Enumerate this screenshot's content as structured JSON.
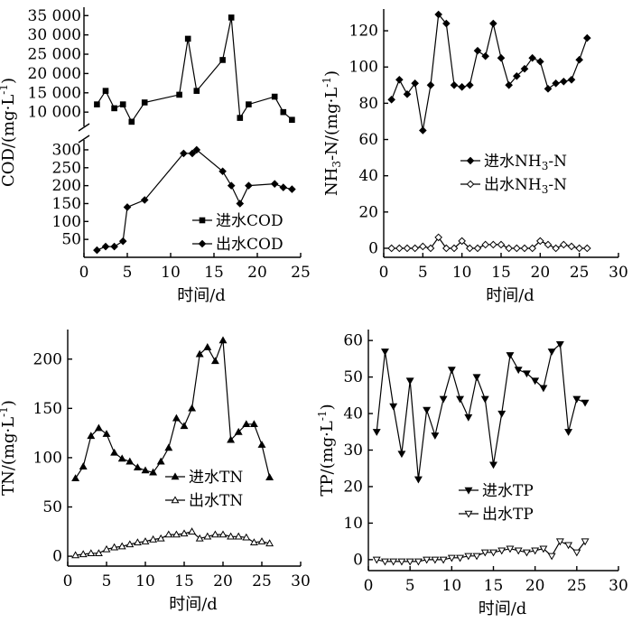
{
  "chart_data": [
    {
      "type": "line",
      "panel": "COD",
      "xlabel": "时间/d",
      "ylabel_main": "COD/(mg·L",
      "ylabel_sup": "-1",
      "ylabel_tail": ")",
      "xlim": [
        0,
        25
      ],
      "xticks": [
        "0",
        "5",
        "10",
        "15",
        "20",
        "25"
      ],
      "broken_y_axis": true,
      "upper_ylim": [
        7000,
        36000
      ],
      "upper_yticks": [
        [
          "10 000",
          10000
        ],
        [
          "15 000",
          15000
        ],
        [
          "20 000",
          20000
        ],
        [
          "25 000",
          25000
        ],
        [
          "30 000",
          30000
        ],
        [
          "35 000",
          35000
        ]
      ],
      "lower_ylim": [
        0,
        320
      ],
      "lower_yticks": [
        [
          "50",
          50
        ],
        [
          "100",
          100
        ],
        [
          "150",
          150
        ],
        [
          "200",
          200
        ],
        [
          "250",
          250
        ],
        [
          "300",
          300
        ]
      ],
      "legend_position": "lower-right",
      "series": [
        {
          "name": "进水COD",
          "marker": "square",
          "axis": "upper",
          "x": [
            1.5,
            2.5,
            3.5,
            4.5,
            5.5,
            7,
            11,
            12,
            13,
            16,
            17,
            18,
            19,
            22,
            23,
            24
          ],
          "y": [
            12000,
            15500,
            11000,
            12000,
            7500,
            12500,
            14500,
            29000,
            15500,
            23500,
            34500,
            8500,
            12000,
            14000,
            10000,
            8000
          ]
        },
        {
          "name": "出水COD",
          "marker": "diamond",
          "axis": "lower",
          "x": [
            1.5,
            2.5,
            3.5,
            4.5,
            5,
            7,
            11.5,
            12.5,
            13,
            16,
            17,
            18,
            19,
            22,
            23,
            24
          ],
          "y": [
            20,
            30,
            30,
            45,
            140,
            160,
            290,
            290,
            300,
            240,
            200,
            150,
            200,
            205,
            195,
            190
          ]
        }
      ]
    },
    {
      "type": "line",
      "panel": "NH3-N",
      "xlabel": "时间/d",
      "ylabel_main": "NH",
      "ylabel_sub": "3",
      "ylabel_mid": "-N/(mg·L",
      "ylabel_sup": "-1",
      "ylabel_tail": ")",
      "xlim": [
        0,
        30
      ],
      "xticks": [
        "0",
        "5",
        "10",
        "15",
        "20",
        "25",
        "30"
      ],
      "ylim": [
        -5,
        132
      ],
      "yticks": [
        "0",
        "20",
        "40",
        "60",
        "80",
        "100",
        "120"
      ],
      "legend_position": "middle-right",
      "series": [
        {
          "name": "进水NH3-N",
          "legend_main": "进水NH",
          "legend_sub": "3",
          "legend_tail": "-N",
          "marker": "filled-diamond",
          "x": [
            1,
            2,
            3,
            4,
            5,
            6,
            7,
            8,
            9,
            10,
            11,
            12,
            13,
            14,
            15,
            16,
            17,
            18,
            19,
            20,
            21,
            22,
            23,
            24,
            25,
            26
          ],
          "y": [
            82,
            93,
            85,
            91,
            65,
            90,
            129,
            124,
            90,
            89,
            90,
            109,
            106,
            124,
            105,
            90,
            95,
            99,
            105,
            103,
            88,
            91,
            92,
            93,
            104,
            116
          ]
        },
        {
          "name": "出水NH3-N",
          "legend_main": "出水NH",
          "legend_sub": "3",
          "legend_tail": "-N",
          "marker": "open-diamond",
          "x": [
            1,
            2,
            3,
            4,
            5,
            6,
            7,
            8,
            9,
            10,
            11,
            12,
            13,
            14,
            15,
            16,
            17,
            18,
            19,
            20,
            21,
            22,
            23,
            24,
            25,
            26
          ],
          "y": [
            0,
            0,
            0,
            0,
            1,
            0,
            6,
            0,
            0,
            4,
            0,
            0,
            2,
            2,
            2,
            0,
            0,
            0,
            0,
            4,
            2,
            0,
            2,
            1,
            0,
            0
          ]
        }
      ]
    },
    {
      "type": "line",
      "panel": "TN",
      "xlabel": "时间/d",
      "ylabel_main": "TN/(mg·L",
      "ylabel_sup": "-1",
      "ylabel_tail": ")",
      "xlim": [
        0,
        30
      ],
      "xticks": [
        "0",
        "5",
        "10",
        "15",
        "20",
        "25",
        "30"
      ],
      "ylim": [
        -10,
        230
      ],
      "yticks": [
        "0",
        "50",
        "100",
        "150",
        "200"
      ],
      "legend_position": "lower-right",
      "series": [
        {
          "name": "进水TN",
          "marker": "filled-triangle-up",
          "x": [
            1,
            2,
            3,
            4,
            5,
            6,
            7,
            8,
            9,
            10,
            11,
            12,
            13,
            14,
            15,
            16,
            17,
            18,
            19,
            20,
            21,
            22,
            23,
            24,
            25,
            26
          ],
          "y": [
            79,
            91,
            122,
            130,
            124,
            105,
            99,
            96,
            90,
            87,
            85,
            96,
            110,
            140,
            132,
            150,
            205,
            212,
            198,
            219,
            118,
            126,
            134,
            134,
            113,
            80
          ]
        },
        {
          "name": "出水TN",
          "marker": "open-triangle-up",
          "x": [
            1,
            2,
            3,
            4,
            5,
            6,
            7,
            8,
            9,
            10,
            11,
            12,
            13,
            14,
            15,
            16,
            17,
            18,
            19,
            20,
            21,
            22,
            23,
            24,
            25,
            26
          ],
          "y": [
            1,
            2,
            3,
            3,
            7,
            9,
            10,
            12,
            14,
            15,
            17,
            18,
            22,
            22,
            23,
            25,
            18,
            20,
            22,
            22,
            20,
            20,
            19,
            14,
            15,
            13
          ]
        }
      ]
    },
    {
      "type": "line",
      "panel": "TP",
      "xlabel": "时间/d",
      "ylabel_main": "TP/(mg·L",
      "ylabel_sup": "-1",
      "ylabel_tail": ")",
      "xlim": [
        0,
        30
      ],
      "xticks": [
        "0",
        "5",
        "10",
        "15",
        "20",
        "25",
        "30"
      ],
      "ylim": [
        -3,
        63
      ],
      "yticks": [
        "0",
        "10",
        "20",
        "30",
        "40",
        "50",
        "60"
      ],
      "legend_position": "lower-right",
      "series": [
        {
          "name": "进水TP",
          "marker": "filled-triangle-down",
          "x": [
            1,
            2,
            3,
            4,
            5,
            6,
            7,
            8,
            9,
            10,
            11,
            12,
            13,
            14,
            15,
            16,
            17,
            18,
            19,
            20,
            21,
            22,
            23,
            24,
            25,
            26
          ],
          "y": [
            35,
            57,
            42,
            29,
            49,
            22,
            41,
            34,
            44,
            52,
            44,
            39,
            50,
            44,
            26,
            40,
            56,
            52,
            51,
            49,
            47,
            57,
            59,
            35,
            44,
            43
          ]
        },
        {
          "name": "出水TP",
          "marker": "open-triangle-down",
          "x": [
            1,
            2,
            3,
            4,
            5,
            6,
            7,
            8,
            9,
            10,
            11,
            12,
            13,
            14,
            15,
            16,
            17,
            18,
            19,
            20,
            21,
            22,
            23,
            24,
            25,
            26
          ],
          "y": [
            0,
            -0.5,
            -0.5,
            -0.5,
            -0.5,
            -0.5,
            0,
            0,
            0,
            0.5,
            0.5,
            1,
            1,
            2,
            2,
            2.5,
            3,
            2.5,
            2,
            2.5,
            3,
            1,
            5,
            4,
            2,
            5
          ]
        }
      ]
    }
  ]
}
